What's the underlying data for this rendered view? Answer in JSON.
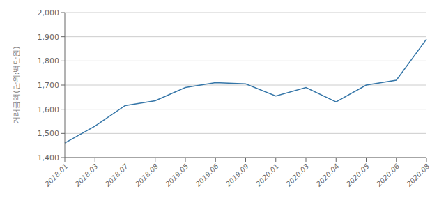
{
  "chart_data": {
    "type": "line",
    "ylabel": "거래금액(단위:백만원)",
    "categories": [
      "2018.01",
      "2018.03",
      "2018.07",
      "2018.08",
      "2019.05",
      "2019.06",
      "2019.09",
      "2020.01",
      "2020.03",
      "2020.04",
      "2020.05",
      "2020.06",
      "2020.08"
    ],
    "values": [
      1460,
      1530,
      1615,
      1635,
      1690,
      1710,
      1705,
      1655,
      1690,
      1630,
      1700,
      1720,
      1890
    ],
    "color": "#3576a8",
    "ylim": [
      1400,
      2000
    ],
    "yticks": [
      {
        "value": 1400,
        "label": "1,400"
      },
      {
        "value": 1500,
        "label": "1,500"
      },
      {
        "value": 1600,
        "label": "1,600"
      },
      {
        "value": 1700,
        "label": "1,700"
      },
      {
        "value": 1800,
        "label": "1,800"
      },
      {
        "value": 1900,
        "label": "1,900"
      },
      {
        "value": 2000,
        "label": "2,000"
      }
    ],
    "grid": true
  }
}
